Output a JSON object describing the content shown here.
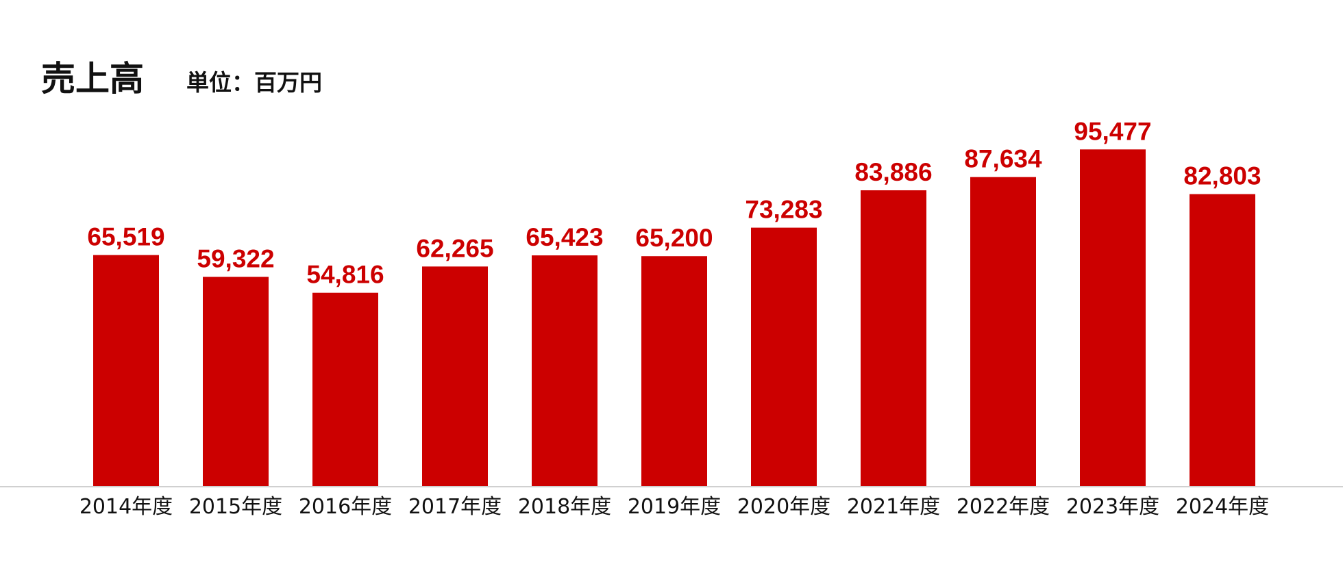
{
  "chart_data": {
    "type": "bar",
    "title": "売上高",
    "subtitle": "単位：百万円",
    "categories": [
      "2014年度",
      "2015年度",
      "2016年度",
      "2017年度",
      "2018年度",
      "2019年度",
      "2020年度",
      "2021年度",
      "2022年度",
      "2023年度",
      "2024年度"
    ],
    "values": [
      65519,
      59322,
      54816,
      62265,
      65423,
      65200,
      73283,
      83886,
      87634,
      95477,
      82803
    ],
    "value_labels": [
      "65,519",
      "59,322",
      "54,816",
      "62,265",
      "65,423",
      "65,200",
      "73,283",
      "83,886",
      "87,634",
      "95,477",
      "82,803"
    ],
    "color": "#cc0000",
    "ylim": [
      0,
      100000
    ]
  }
}
